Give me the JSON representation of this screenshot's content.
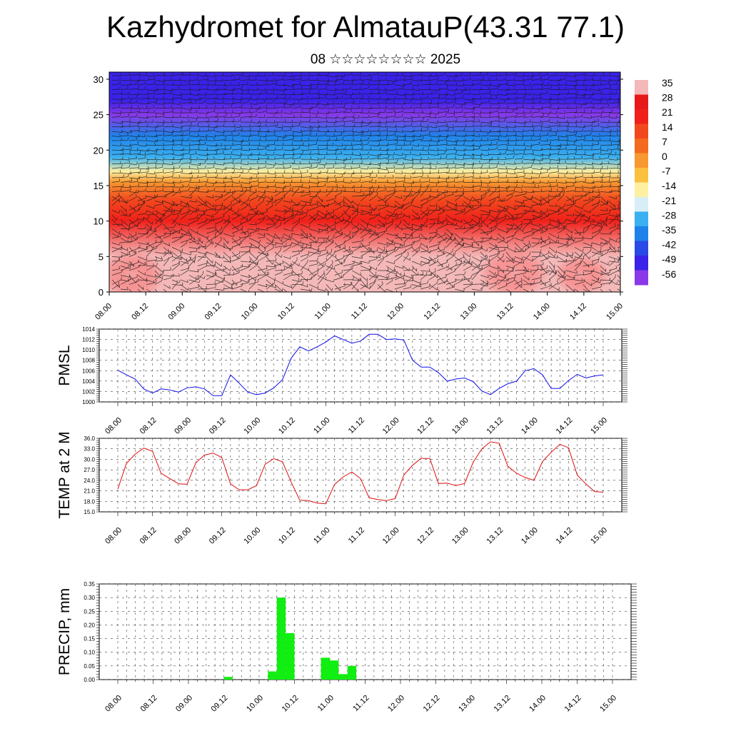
{
  "title": "Kazhydromet for AlmatauP(43.31 77.1)",
  "subtitle": "08 ☆☆☆☆☆☆☆☆ 2025",
  "time_labels": [
    "08.00",
    "08.12",
    "09.00",
    "09.12",
    "10.00",
    "10.12",
    "11.00",
    "11.12",
    "12.00",
    "12.12",
    "13.00",
    "13.12",
    "14.00",
    "14.12",
    "15.00"
  ],
  "chart_data": [
    {
      "type": "heatmap",
      "name": "vertical-section",
      "y_ticks": [
        "0",
        "5",
        "10",
        "15",
        "20",
        "25",
        "30"
      ],
      "ylim": [
        0,
        31
      ],
      "colorbar_labels": [
        "35",
        "28",
        "21",
        "14",
        "7",
        "0",
        "-7",
        "-14",
        "-21",
        "-28",
        "-35",
        "-42",
        "-49",
        "-56"
      ],
      "colorbar_colors": [
        "#f4b8b8",
        "#e8191a",
        "#f0201a",
        "#f2481e",
        "#f46a20",
        "#f79830",
        "#fac040",
        "#fdf0a0",
        "#d8eef6",
        "#3ab0f0",
        "#1f82ea",
        "#2a4ae6",
        "#3a22e8",
        "#8a38e8"
      ],
      "temperature_profile": [
        {
          "level": 0,
          "value": 35
        },
        {
          "level": 5,
          "value": 32
        },
        {
          "level": 10,
          "value": 24
        },
        {
          "level": 13,
          "value": 12
        },
        {
          "level": 15.5,
          "value": -2
        },
        {
          "level": 17,
          "value": -15
        },
        {
          "level": 19,
          "value": -25
        },
        {
          "level": 22,
          "value": -35
        },
        {
          "level": 25,
          "value": -58
        },
        {
          "level": 27,
          "value": -50
        },
        {
          "level": 31,
          "value": -48
        }
      ]
    },
    {
      "type": "line",
      "ylabel": "PMSL",
      "ylim": [
        1000,
        1014
      ],
      "y_ticks": [
        "1014",
        "1012",
        "1010",
        "1008",
        "1006",
        "1004",
        "1002",
        "1000"
      ],
      "color": "#1010ee",
      "x": [
        0,
        0.25,
        0.5,
        0.75,
        1,
        1.25,
        1.5,
        1.75,
        2,
        2.25,
        2.5,
        2.75,
        3,
        3.25,
        3.5,
        3.75,
        4,
        4.25,
        4.5,
        4.75,
        5,
        5.25,
        5.5,
        5.75,
        6,
        6.25,
        6.5,
        6.75,
        7,
        7.25,
        7.5,
        7.75,
        8,
        8.25,
        8.5,
        8.75,
        9,
        9.25,
        9.5,
        9.75,
        10,
        10.25,
        10.5,
        10.75,
        11,
        11.25,
        11.5,
        11.75,
        12,
        12.25,
        12.5,
        12.75,
        13,
        13.25,
        13.5,
        13.75,
        14
      ],
      "values": [
        1006.1,
        1005.2,
        1004.4,
        1002.5,
        1001.7,
        1002.5,
        1002.3,
        1001.9,
        1002.7,
        1002.9,
        1002.5,
        1001.2,
        1001.2,
        1005.2,
        1003.6,
        1001.9,
        1001.4,
        1001.7,
        1002.7,
        1004.3,
        1008.4,
        1010.6,
        1009.8,
        1010.6,
        1011.5,
        1012.7,
        1012.0,
        1011.3,
        1011.7,
        1013.0,
        1013.0,
        1012.0,
        1012.1,
        1011.9,
        1008.0,
        1006.7,
        1006.7,
        1005.6,
        1004.0,
        1004.4,
        1004.6,
        1003.9,
        1002.1,
        1001.4,
        1002.6,
        1003.5,
        1004.0,
        1006.0,
        1006.4,
        1005.2,
        1002.6,
        1002.6,
        1004.1,
        1005.3,
        1004.6,
        1005.0,
        1005.2
      ]
    },
    {
      "type": "line",
      "ylabel": "TEMP at 2 M",
      "ylim": [
        15,
        36
      ],
      "y_ticks": [
        "36.0",
        "33.0",
        "30.0",
        "27.0",
        "24.0",
        "21.0",
        "18.0",
        "15.0"
      ],
      "color": "#dd1111",
      "x": [
        0,
        0.25,
        0.5,
        0.75,
        1,
        1.25,
        1.5,
        1.75,
        2,
        2.25,
        2.5,
        2.75,
        3,
        3.25,
        3.5,
        3.75,
        4,
        4.25,
        4.5,
        4.75,
        5,
        5.25,
        5.5,
        5.75,
        6,
        6.25,
        6.5,
        6.75,
        7,
        7.25,
        7.5,
        7.75,
        8,
        8.25,
        8.5,
        8.75,
        9,
        9.25,
        9.5,
        9.75,
        10,
        10.25,
        10.5,
        10.75,
        11,
        11.25,
        11.5,
        11.75,
        12,
        12.25,
        12.5,
        12.75,
        13,
        13.25,
        13.5,
        13.75,
        14
      ],
      "values": [
        21.5,
        28.8,
        31.5,
        33.2,
        32.3,
        26.0,
        24.5,
        23.0,
        22.9,
        29.0,
        31.2,
        31.8,
        30.5,
        23.0,
        21.3,
        21.3,
        22.5,
        28.6,
        30.2,
        29.3,
        23.5,
        18.3,
        18.2,
        17.5,
        17.3,
        22.8,
        25.0,
        26.4,
        24.5,
        19.0,
        18.5,
        18.2,
        18.8,
        25.5,
        28.3,
        30.3,
        30.2,
        23.1,
        23.2,
        22.5,
        23.1,
        29.2,
        33.0,
        35.0,
        34.6,
        28.0,
        26.0,
        24.8,
        24.0,
        29.4,
        32.0,
        34.3,
        33.3,
        25.5,
        23.0,
        20.8,
        20.6
      ]
    },
    {
      "type": "bar",
      "ylabel": "PRECIP, mm",
      "ylim": [
        0,
        0.35
      ],
      "y_ticks": [
        "0.35",
        "0.30",
        "0.25",
        "0.20",
        "0.15",
        "0.10",
        "0.05",
        "0.00"
      ],
      "color": "#11ee11",
      "bar_width": 0.25,
      "bars": [
        {
          "x": 3.0,
          "value": 0.01
        },
        {
          "x": 4.25,
          "value": 0.03
        },
        {
          "x": 4.5,
          "value": 0.3
        },
        {
          "x": 4.75,
          "value": 0.17
        },
        {
          "x": 5.75,
          "value": 0.08
        },
        {
          "x": 6.0,
          "value": 0.07
        },
        {
          "x": 6.25,
          "value": 0.02
        },
        {
          "x": 6.5,
          "value": 0.05
        }
      ]
    }
  ]
}
